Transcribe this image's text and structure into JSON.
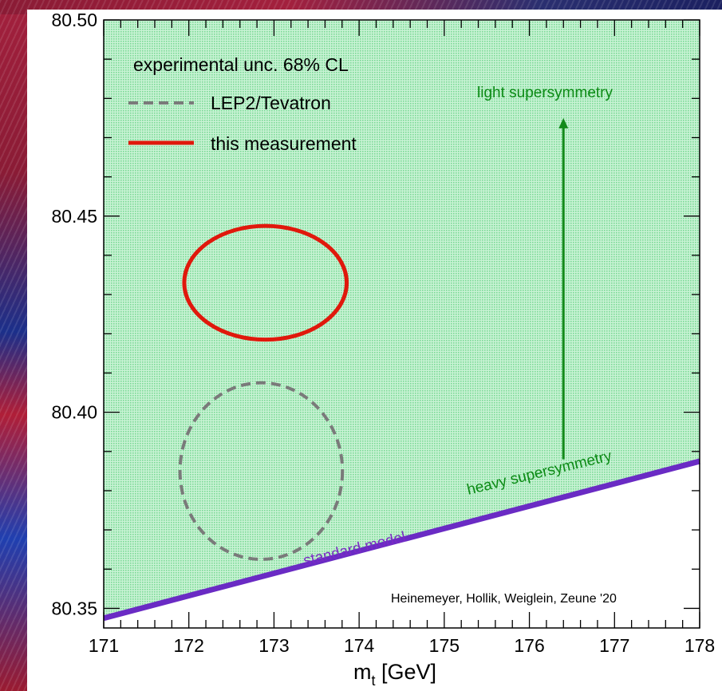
{
  "chart_data": {
    "type": "scatter",
    "title": "",
    "xlabel": "m",
    "xlabel_sub": "t",
    "xlabel_unit": " [GeV]",
    "ylabel": "",
    "xlim": [
      171,
      178
    ],
    "ylim": [
      80.345,
      80.5
    ],
    "xticks": [
      "171",
      "172",
      "173",
      "174",
      "175",
      "176",
      "177",
      "178"
    ],
    "yticks": [
      "80.35",
      "80.40",
      "80.45",
      "80.50"
    ],
    "ytick_values": [
      80.35,
      80.4,
      80.45,
      80.5
    ],
    "region": {
      "description_color": "#a6edbd",
      "lower_boundary": {
        "x": [
          171,
          178
        ],
        "y": [
          80.3475,
          80.3875
        ]
      }
    },
    "standard_model_line": {
      "x": [
        171,
        178
      ],
      "y": [
        80.3475,
        80.3875
      ],
      "color": "#6a2bc4"
    },
    "ellipses": [
      {
        "label": "LEP2/Tevatron",
        "cx": 172.85,
        "cy": 80.385,
        "rx": 0.9,
        "ry": 0.0225,
        "style": "dashed",
        "color": "#7a7a7a"
      },
      {
        "label": "this measurement",
        "cx": 172.9,
        "cy": 80.433,
        "rx": 0.9,
        "ry": 0.0145,
        "style": "solid",
        "color": "#e0180c"
      }
    ],
    "arrow": {
      "x": 176.4,
      "y_from": 80.388,
      "y_to": 80.475,
      "color": "#138a1a"
    },
    "annotations": {
      "light": "light supersymmetry",
      "heavy": "heavy supersymmetry",
      "standard": "standard model"
    },
    "legend": {
      "title": "experimental unc. 68% CL",
      "placement": "top-left",
      "entries": [
        {
          "label": "LEP2/Tevatron",
          "style": "dashed",
          "color": "#7a7a7a"
        },
        {
          "label": "this measurement",
          "style": "solid",
          "color": "#e0180c"
        }
      ]
    },
    "credit": "Heinemeyer, Hollik, Weiglein, Zeune '20"
  }
}
